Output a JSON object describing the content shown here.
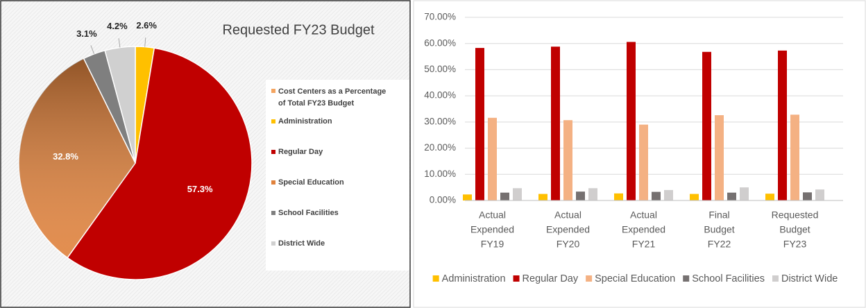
{
  "chart_data": [
    {
      "type": "pie",
      "title": "Requested FY23 Budget",
      "legend_title": "Cost Centers as a Percentage of Total FY23 Budget",
      "legend_title_color": "#f4a460",
      "categories": [
        "Administration",
        "Regular Day",
        "Special Education",
        "School Facilities",
        "District Wide"
      ],
      "values": [
        2.6,
        57.3,
        32.8,
        3.1,
        4.2
      ],
      "value_labels": [
        "2.6%",
        "57.3%",
        "32.8%",
        "3.1%",
        "4.2%"
      ],
      "colors": [
        "#ffc000",
        "#c00000",
        "#e0823c",
        "#7f7f7f",
        "#d0d0d0"
      ]
    },
    {
      "type": "bar",
      "categories": [
        [
          "Actual",
          "Expended",
          "FY19"
        ],
        [
          "Actual",
          "Expended",
          "FY20"
        ],
        [
          "Actual",
          "Expended",
          "FY21"
        ],
        [
          "Final",
          "Budget",
          "FY22"
        ],
        [
          "Requested",
          "Budget",
          "FY23"
        ]
      ],
      "series": [
        {
          "name": "Administration",
          "color": "#ffc000",
          "values": [
            2.3,
            2.5,
            2.7,
            2.5,
            2.6
          ]
        },
        {
          "name": "Regular Day",
          "color": "#c00000",
          "values": [
            58.3,
            58.8,
            60.6,
            56.8,
            57.3
          ]
        },
        {
          "name": "Special Education",
          "color": "#f4b183",
          "values": [
            31.6,
            30.7,
            29.0,
            32.6,
            32.8
          ]
        },
        {
          "name": "School Facilities",
          "color": "#767171",
          "values": [
            3.0,
            3.4,
            3.3,
            3.0,
            3.1
          ]
        },
        {
          "name": "District Wide",
          "color": "#d0cece",
          "values": [
            4.7,
            4.7,
            4.0,
            5.0,
            4.2
          ]
        }
      ],
      "ylim": [
        0,
        70
      ],
      "yticks": [
        {
          "value": 0,
          "label": "0.00%"
        },
        {
          "value": 10,
          "label": "10.00%"
        },
        {
          "value": 20,
          "label": "20.00%"
        },
        {
          "value": 30,
          "label": "30.00%"
        },
        {
          "value": 40,
          "label": "40.00%"
        },
        {
          "value": 50,
          "label": "50.00%"
        },
        {
          "value": 60,
          "label": "60.00%"
        },
        {
          "value": 70,
          "label": "70.00%"
        }
      ],
      "grid": true,
      "legend": "bottom"
    }
  ]
}
